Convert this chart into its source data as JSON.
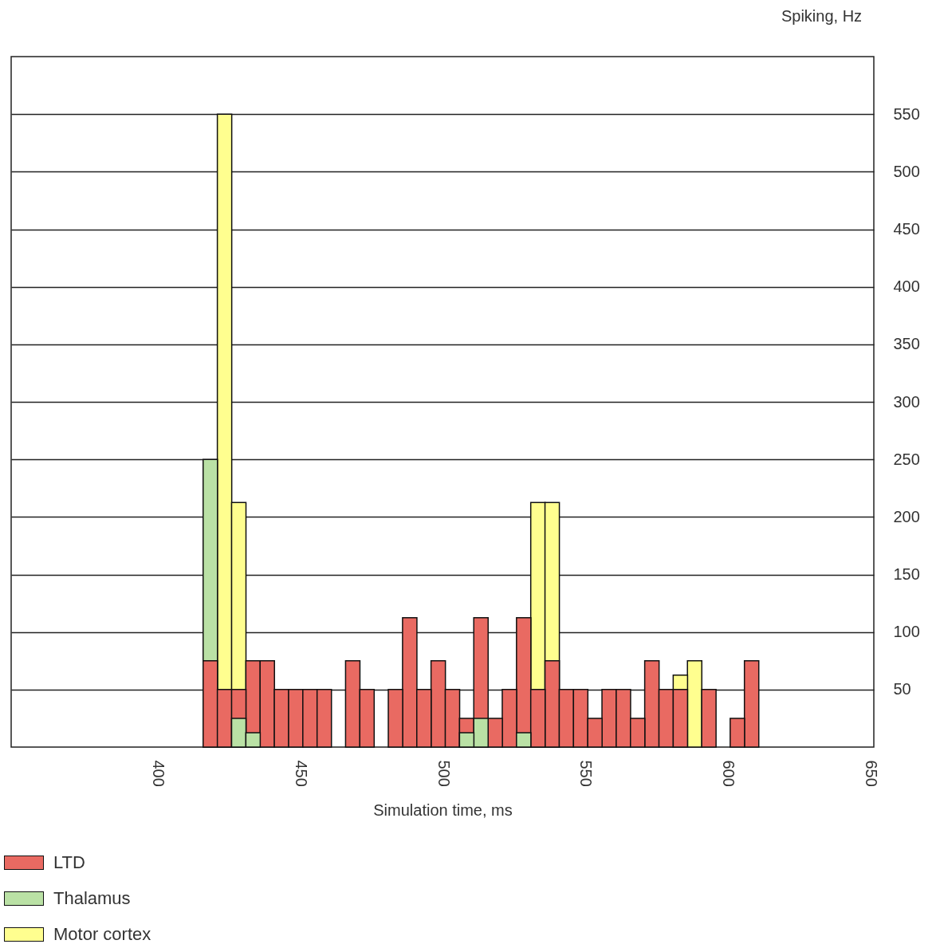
{
  "chart_data": {
    "type": "bar",
    "xlabel": "Simulation time, ms",
    "ylabel": "Spiking, Hz",
    "x": [
      418.5,
      423.5,
      428.5,
      433.5,
      438.5,
      443.5,
      448.5,
      453.5,
      458.5,
      468.5,
      473.5,
      483.5,
      488.5,
      493.5,
      498.5,
      503.5,
      508.5,
      513.5,
      518.5,
      523.5,
      528.5,
      533.5,
      538.5,
      543.5,
      548.5,
      553.5,
      558.5,
      563.5,
      568.5,
      573.5,
      578.5,
      583.5,
      588.5,
      593.5,
      603.5,
      608.5
    ],
    "series": [
      {
        "name": "LTD",
        "color": "#e96a62",
        "values": [
          75,
          50,
          50,
          75,
          75,
          50,
          50,
          50,
          50,
          75,
          50,
          50,
          112.5,
          50,
          75,
          50,
          25,
          112.5,
          25,
          50,
          112.5,
          50,
          75,
          50,
          50,
          25,
          50,
          50,
          25,
          75,
          50,
          50,
          null,
          50,
          25,
          75
        ]
      },
      {
        "name": "Thalamus",
        "color": "#bae1a5",
        "values": [
          250,
          null,
          25,
          12.5,
          null,
          null,
          null,
          null,
          null,
          null,
          null,
          null,
          null,
          null,
          null,
          null,
          12.5,
          25,
          null,
          null,
          12.5,
          null,
          null,
          null,
          null,
          null,
          null,
          null,
          null,
          null,
          null,
          null,
          null,
          null,
          null,
          null
        ]
      },
      {
        "name": "Motor cortex",
        "color": "#fffe8f",
        "values": [
          null,
          550,
          212.5,
          null,
          null,
          null,
          null,
          null,
          null,
          null,
          null,
          null,
          null,
          null,
          null,
          null,
          null,
          null,
          null,
          null,
          null,
          212.5,
          212.5,
          null,
          null,
          null,
          null,
          null,
          null,
          null,
          null,
          62.5,
          75,
          null,
          null,
          null
        ]
      }
    ],
    "xlim": [
      350,
      650
    ],
    "xticks": [
      400,
      450,
      500,
      550,
      600,
      650
    ],
    "ylim": [
      0,
      600
    ],
    "yticks": [
      50,
      100,
      150,
      200,
      250,
      300,
      350,
      400,
      450,
      500,
      550
    ],
    "grid": "y",
    "legend": "bottom left"
  }
}
